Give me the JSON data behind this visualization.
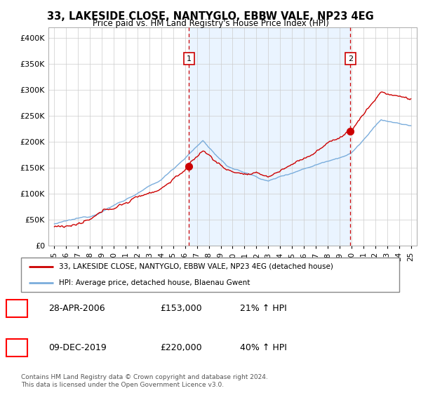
{
  "title": "33, LAKESIDE CLOSE, NANTYGLO, EBBW VALE, NP23 4EG",
  "subtitle": "Price paid vs. HM Land Registry's House Price Index (HPI)",
  "legend_line1": "33, LAKESIDE CLOSE, NANTYGLO, EBBW VALE, NP23 4EG (detached house)",
  "legend_line2": "HPI: Average price, detached house, Blaenau Gwent",
  "table_row1_date": "28-APR-2006",
  "table_row1_price": "£153,000",
  "table_row1_hpi": "21% ↑ HPI",
  "table_row2_date": "09-DEC-2019",
  "table_row2_price": "£220,000",
  "table_row2_hpi": "40% ↑ HPI",
  "footer1": "Contains HM Land Registry data © Crown copyright and database right 2024.",
  "footer2": "This data is licensed under the Open Government Licence v3.0.",
  "sale1_year": 2006.33,
  "sale1_price": 153000,
  "sale2_year": 2019.92,
  "sale2_price": 220000,
  "hpi_color": "#7aaddc",
  "price_color": "#cc0000",
  "vline_color": "#cc0000",
  "fill_color": "#ddeeff",
  "background_color": "#ffffff",
  "grid_color": "#cccccc",
  "ylim_min": 0,
  "ylim_max": 420000,
  "xlim_min": 1994.5,
  "xlim_max": 2025.5,
  "yticks": [
    0,
    50000,
    100000,
    150000,
    200000,
    250000,
    300000,
    350000,
    400000
  ]
}
